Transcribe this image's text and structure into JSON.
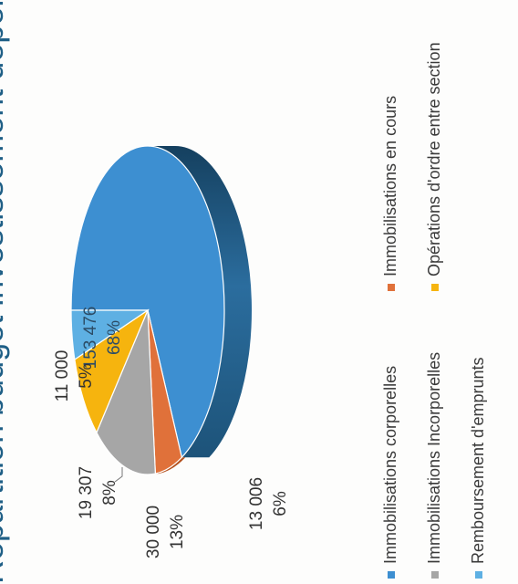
{
  "chart_data": {
    "type": "pie",
    "title": "Répartition budget investissement dépenses",
    "values": [
      153476,
      13006,
      30000,
      19307,
      11000
    ],
    "percents": [
      "68%",
      "6%",
      "13%",
      "8%",
      "5%"
    ],
    "value_labels": [
      "153 476",
      "13 006",
      "30 000",
      "19 307",
      "11 000"
    ],
    "colors": [
      "#3d8fd1",
      "#e0713a",
      "#a6a6a6",
      "#f6b40e",
      "#5eb0e3"
    ],
    "legend": [
      {
        "label": "Immobilisations corporelles",
        "color": "#3d8fd1"
      },
      {
        "label": "Immobilisations en cours",
        "color": "#e0713a"
      },
      {
        "label": "Immobilisations Incorporelles",
        "color": "#a6a6a6"
      },
      {
        "label": "Opérations d'ordre entre section",
        "color": "#f6b40e"
      },
      {
        "label": "Remboursement d'emprunts",
        "color": "#5eb0e3"
      }
    ],
    "legend_placement": "bottom",
    "style": "3d-pie"
  }
}
